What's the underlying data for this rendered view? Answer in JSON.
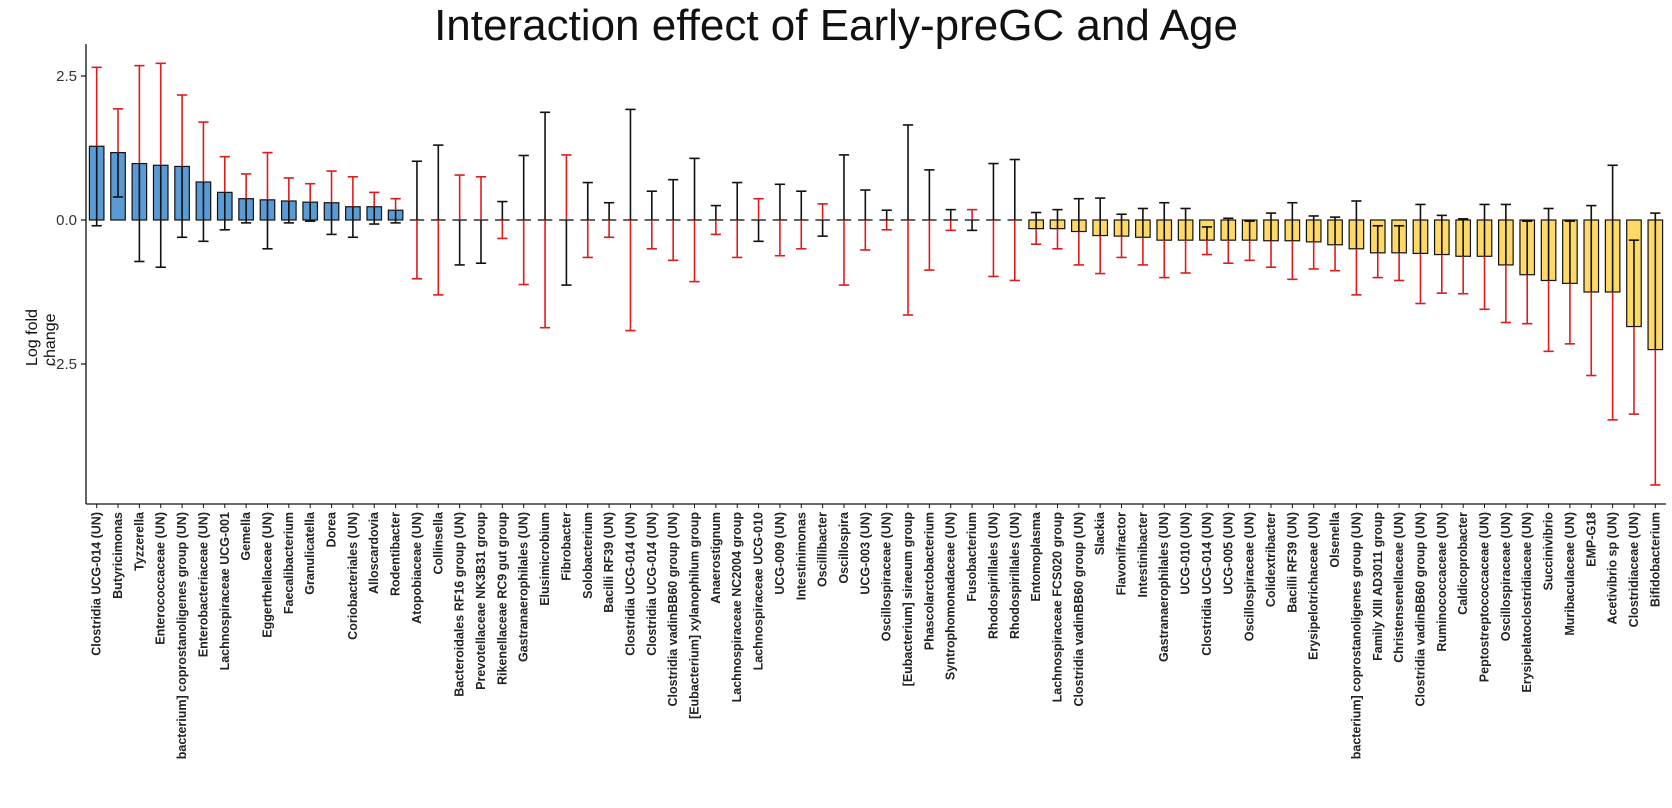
{
  "chart_data": {
    "type": "bar",
    "title": "Interaction effect of Early-preGC and Age",
    "xlabel": "",
    "ylabel": "Log fold change",
    "ylim": [
      -5,
      3
    ],
    "yticks": [
      2.5,
      0.0,
      -2.5
    ],
    "ytick_labels": [
      "2.5",
      "0.0",
      "-2.5"
    ],
    "colors": {
      "positive": "#5b9bd5",
      "negative": "#ffd966",
      "error_pos": "#111111",
      "error_neg": "#dd1c1c",
      "bar_edge": "#111111"
    },
    "categories": [
      "Clostridia UCG-014 (UN)",
      "Butyricimonas",
      "Tyzzerella",
      "Enterococcaceae (UN)",
      "bacterium] coprostanoligenes group (UN)",
      "Enterobacteriaceae (UN)",
      "Lachnospiraceae UCG-001",
      "Gemella",
      "Eggerthellaceae (UN)",
      "Faecalibacterium",
      "Granulicatella",
      "Dorea",
      "Coriobacteriales (UN)",
      "Alloscardovia",
      "Rodentibacter",
      "Atopobiaceae (UN)",
      "Collinsella",
      "Bacteroidales RF16 group (UN)",
      "Prevotellaceae NK3B31 group",
      "Rikenellaceae RC9 gut group",
      "Gastranaerophilales (UN)",
      "Elusimicrobium",
      "Fibrobacter",
      "Solobacterium",
      "Bacilli RF39 (UN)",
      "Clostridia UCG-014 (UN)",
      "Clostridia UCG-014 (UN)",
      "Clostridia vadinBB60 group (UN)",
      "[Eubacterium] xylanophilum group",
      "Anaerostignum",
      "Lachnospiraceae NC2004 group",
      "Lachnospiraceae UCG-010",
      "UCG-009 (UN)",
      "Intestinimonas",
      "Oscillibacter",
      "Oscillospira",
      "UCG-003 (UN)",
      "Oscillospiraceae (UN)",
      "[Eubacterium] siraeum group",
      "Phascolarctobacterium",
      "Syntrophomonadaceae (UN)",
      "Fusobacterium",
      "Rhodospirillales (UN)",
      "Rhodospirillales (UN)",
      "Entomoplasma",
      "Lachnospiraceae FCS020 group",
      "Clostridia vadinBB60 group (UN)",
      "Slackia",
      "Flavonifractor",
      "Intestinibacter",
      "Gastranaerophilales (UN)",
      "UCG-010 (UN)",
      "Clostridia UCG-014 (UN)",
      "UCG-005 (UN)",
      "Oscillospiraceae (UN)",
      "Colidextribacter",
      "Bacilli RF39 (UN)",
      "Erysipelotrichaceae (UN)",
      "Olsenella",
      "bacterium] coprostanoligenes group (UN)",
      "Family XIII AD3011 group",
      "Christensenellaceae (UN)",
      "Clostridia vadinBB60 group (UN)",
      "Ruminococcaceae (UN)",
      "Caldicoprobacter",
      "Peptostreptococcaceae (UN)",
      "Oscillospiraceae (UN)",
      "Erysipelatoclostridiaceae (UN)",
      "Succinivibrio",
      "Muribaculaceae (UN)",
      "EMP-G18",
      "Acetivibrio sp (UN)",
      "Clostridiaceae (UN)",
      "Bifidobacterium"
    ],
    "values": [
      1.28,
      1.17,
      0.98,
      0.95,
      0.93,
      0.66,
      0.48,
      0.37,
      0.35,
      0.33,
      0.31,
      0.3,
      0.23,
      0.23,
      0.17,
      0,
      0,
      0,
      0,
      0,
      0,
      0,
      0,
      0,
      0,
      0,
      0,
      0,
      0,
      0,
      0,
      0,
      0,
      0,
      0,
      0,
      0,
      0,
      0,
      0,
      0,
      0,
      0,
      0,
      -0.15,
      -0.15,
      -0.2,
      -0.27,
      -0.28,
      -0.3,
      -0.35,
      -0.35,
      -0.35,
      -0.35,
      -0.35,
      -0.36,
      -0.36,
      -0.38,
      -0.43,
      -0.5,
      -0.57,
      -0.57,
      -0.58,
      -0.6,
      -0.63,
      -0.63,
      -0.78,
      -0.95,
      -1.05,
      -1.1,
      -1.25,
      -1.25,
      -1.85,
      -2.25
    ],
    "ci_lower": [
      -0.1,
      0.4,
      -0.72,
      -0.82,
      -0.3,
      -0.37,
      -0.17,
      -0.05,
      -0.5,
      -0.05,
      -0.02,
      -0.25,
      -0.3,
      -0.07,
      -0.05,
      -1.02,
      -1.3,
      -0.78,
      -0.75,
      -0.32,
      -1.12,
      -1.87,
      -1.13,
      -0.65,
      -0.3,
      -1.92,
      -0.5,
      -0.7,
      -1.07,
      -0.25,
      -0.65,
      -0.37,
      -0.62,
      -0.5,
      -0.28,
      -1.13,
      -0.52,
      -0.17,
      -1.65,
      -0.87,
      -0.18,
      -0.18,
      -0.98,
      -1.05,
      -0.42,
      -0.5,
      -0.78,
      -0.93,
      -0.65,
      -0.78,
      -1.0,
      -0.92,
      -0.6,
      -0.75,
      -0.7,
      -0.82,
      -1.03,
      -0.85,
      -0.88,
      -1.3,
      -1.0,
      -1.05,
      -1.45,
      -1.27,
      -1.28,
      -1.55,
      -1.78,
      -1.8,
      -2.28,
      -2.15,
      -2.7,
      -3.47,
      -3.37,
      -4.6
    ],
    "ci_upper": [
      2.65,
      1.93,
      2.68,
      2.72,
      2.17,
      1.7,
      1.1,
      0.8,
      1.17,
      0.73,
      0.63,
      0.85,
      0.75,
      0.48,
      0.37,
      1.02,
      1.3,
      0.78,
      0.75,
      0.32,
      1.12,
      1.87,
      1.13,
      0.65,
      0.3,
      1.92,
      0.5,
      0.7,
      1.07,
      0.25,
      0.65,
      0.37,
      0.62,
      0.5,
      0.28,
      1.13,
      0.52,
      0.17,
      1.65,
      0.87,
      0.18,
      0.18,
      0.98,
      1.05,
      0.13,
      0.18,
      0.37,
      0.38,
      0.1,
      0.2,
      0.3,
      0.2,
      -0.12,
      0.03,
      -0.02,
      0.12,
      0.3,
      0.07,
      0.05,
      0.33,
      -0.1,
      -0.1,
      0.27,
      0.08,
      0.02,
      0.27,
      0.27,
      -0.02,
      0.2,
      -0.02,
      0.25,
      0.95,
      -0.35,
      0.12
    ]
  }
}
